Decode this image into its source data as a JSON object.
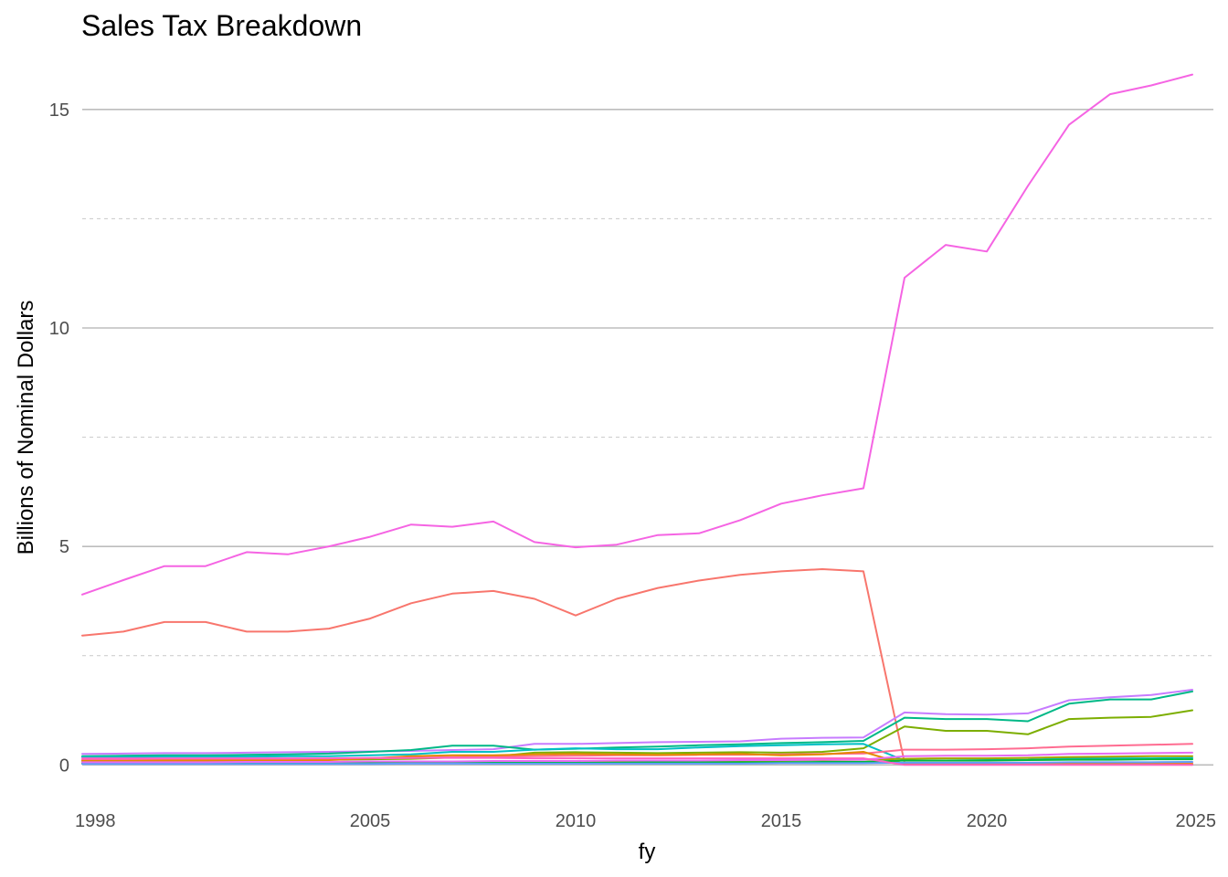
{
  "chart_data": {
    "type": "line",
    "title": "Sales Tax Breakdown",
    "xlabel": "fy",
    "ylabel": "Billions of Nominal Dollars",
    "xlim": [
      1998,
      2025
    ],
    "ylim": [
      -0.6,
      16.0
    ],
    "x_ticks": [
      "1998",
      "2005",
      "2010",
      "2015",
      "2020",
      "2025"
    ],
    "y_ticks": [
      "0",
      "5",
      "10",
      "15"
    ],
    "grid": {
      "major_y": [
        0,
        5,
        10,
        15
      ],
      "minor_y_dashed": [
        2.5,
        7.5,
        12.5
      ],
      "vertical": false
    },
    "legend": "none",
    "x": [
      1998,
      1999,
      2000,
      2001,
      2002,
      2003,
      2004,
      2005,
      2006,
      2007,
      2008,
      2009,
      2010,
      2011,
      2012,
      2013,
      2014,
      2015,
      2016,
      2017,
      2018,
      2019,
      2020,
      2021,
      2022,
      2023,
      2024,
      2025
    ],
    "series": [
      {
        "color": "#f564e3",
        "values": [
          3.9,
          4.23,
          4.55,
          4.55,
          4.87,
          4.82,
          5.0,
          5.22,
          5.5,
          5.45,
          5.57,
          5.1,
          4.98,
          5.04,
          5.26,
          5.3,
          5.6,
          5.98,
          6.17,
          6.33,
          11.15,
          11.9,
          11.75,
          13.25,
          14.65,
          15.35,
          15.55,
          15.8
        ]
      },
      {
        "color": "#f8766d",
        "values": [
          2.96,
          3.05,
          3.27,
          3.27,
          3.05,
          3.05,
          3.12,
          3.35,
          3.7,
          3.92,
          3.98,
          3.8,
          3.42,
          3.8,
          4.05,
          4.22,
          4.35,
          4.43,
          4.48,
          4.43,
          0.05,
          0.05,
          0.05,
          0.05,
          0.05,
          0.05,
          0.05,
          0.05
        ]
      },
      {
        "color": "#c77cff",
        "values": [
          0.25,
          0.26,
          0.27,
          0.27,
          0.28,
          0.29,
          0.3,
          0.31,
          0.32,
          0.34,
          0.36,
          0.48,
          0.48,
          0.5,
          0.52,
          0.53,
          0.54,
          0.6,
          0.62,
          0.63,
          1.2,
          1.16,
          1.15,
          1.18,
          1.48,
          1.55,
          1.6,
          1.72
        ]
      },
      {
        "color": "#00b887",
        "values": [
          0.2,
          0.21,
          0.22,
          0.22,
          0.23,
          0.24,
          0.26,
          0.3,
          0.34,
          0.44,
          0.44,
          0.35,
          0.37,
          0.4,
          0.42,
          0.45,
          0.47,
          0.5,
          0.52,
          0.55,
          1.08,
          1.05,
          1.05,
          1.0,
          1.4,
          1.5,
          1.5,
          1.68
        ]
      },
      {
        "color": "#7cae00",
        "values": [
          0.1,
          0.1,
          0.1,
          0.1,
          0.11,
          0.11,
          0.12,
          0.13,
          0.14,
          0.17,
          0.19,
          0.28,
          0.29,
          0.28,
          0.27,
          0.28,
          0.29,
          0.28,
          0.3,
          0.38,
          0.88,
          0.78,
          0.78,
          0.7,
          1.05,
          1.08,
          1.1,
          1.25
        ]
      },
      {
        "color": "#00bfc4",
        "values": [
          0.18,
          0.18,
          0.19,
          0.19,
          0.19,
          0.2,
          0.2,
          0.22,
          0.24,
          0.3,
          0.3,
          0.35,
          0.38,
          0.36,
          0.36,
          0.4,
          0.43,
          0.45,
          0.47,
          0.48,
          0.1,
          0.1,
          0.11,
          0.12,
          0.15,
          0.15,
          0.15,
          0.16
        ]
      },
      {
        "color": "#ff6c91",
        "values": [
          0.12,
          0.12,
          0.13,
          0.13,
          0.13,
          0.14,
          0.14,
          0.15,
          0.16,
          0.18,
          0.19,
          0.2,
          0.21,
          0.22,
          0.22,
          0.23,
          0.23,
          0.24,
          0.25,
          0.26,
          0.35,
          0.35,
          0.36,
          0.38,
          0.42,
          0.44,
          0.46,
          0.48
        ]
      },
      {
        "color": "#e58700",
        "values": [
          0.09,
          0.09,
          0.1,
          0.1,
          0.1,
          0.1,
          0.11,
          0.15,
          0.2,
          0.22,
          0.22,
          0.24,
          0.25,
          0.24,
          0.23,
          0.24,
          0.25,
          0.22,
          0.24,
          0.3,
          0.02,
          0.02,
          0.02,
          0.02,
          0.02,
          0.02,
          0.02,
          0.02
        ]
      },
      {
        "color": "#a3a500",
        "values": [
          0.05,
          0.05,
          0.05,
          0.05,
          0.05,
          0.05,
          0.06,
          0.06,
          0.06,
          0.07,
          0.07,
          0.07,
          0.08,
          0.08,
          0.09,
          0.09,
          0.1,
          0.1,
          0.11,
          0.12,
          0.14,
          0.15,
          0.15,
          0.16,
          0.18,
          0.19,
          0.2,
          0.2
        ]
      },
      {
        "color": "#00ba38",
        "values": [
          0.03,
          0.03,
          0.03,
          0.03,
          0.03,
          0.03,
          0.04,
          0.04,
          0.04,
          0.05,
          0.05,
          0.05,
          0.05,
          0.05,
          0.06,
          0.06,
          0.06,
          0.06,
          0.07,
          0.07,
          0.1,
          0.1,
          0.1,
          0.11,
          0.12,
          0.12,
          0.13,
          0.13
        ]
      },
      {
        "color": "#619cff",
        "values": [
          0.02,
          0.02,
          0.02,
          0.02,
          0.02,
          0.02,
          0.02,
          0.02,
          0.03,
          0.03,
          0.03,
          0.03,
          0.03,
          0.03,
          0.03,
          0.03,
          0.03,
          0.04,
          0.04,
          0.04,
          0.05,
          0.05,
          0.05,
          0.05,
          0.06,
          0.06,
          0.06,
          0.07
        ]
      },
      {
        "color": "#e76bf3",
        "values": [
          0.06,
          0.06,
          0.06,
          0.06,
          0.07,
          0.07,
          0.07,
          0.08,
          0.08,
          0.08,
          0.09,
          0.09,
          0.09,
          0.1,
          0.1,
          0.1,
          0.11,
          0.11,
          0.12,
          0.12,
          0.2,
          0.21,
          0.21,
          0.22,
          0.25,
          0.26,
          0.27,
          0.28
        ]
      },
      {
        "color": "#ff61c3",
        "values": [
          0.15,
          0.15,
          0.15,
          0.15,
          0.15,
          0.15,
          0.15,
          0.16,
          0.16,
          0.16,
          0.16,
          0.15,
          0.15,
          0.15,
          0.15,
          0.15,
          0.15,
          0.15,
          0.15,
          0.15,
          0.0,
          0.0,
          0.0,
          0.0,
          0.0,
          0.0,
          0.0,
          0.0
        ]
      }
    ]
  }
}
